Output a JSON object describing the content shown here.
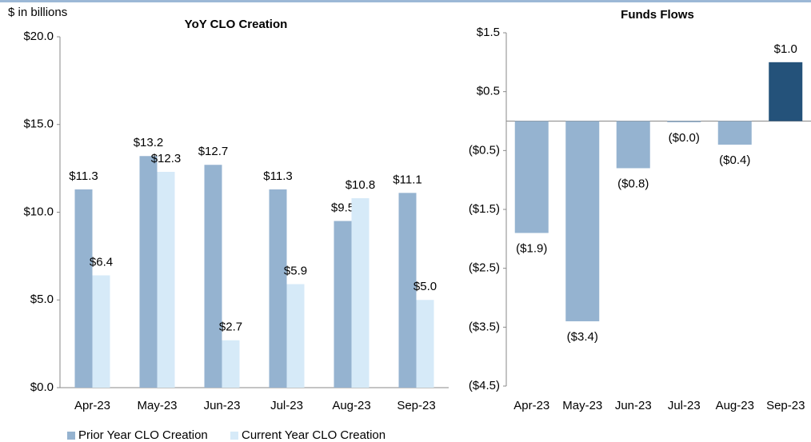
{
  "chart_data": [
    {
      "type": "bar",
      "title": "YoY CLO Creation",
      "ylabel": "$ in billions",
      "categories": [
        "Apr-23",
        "May-23",
        "Jun-23",
        "Jul-23",
        "Aug-23",
        "Sep-23"
      ],
      "series": [
        {
          "name": "Prior Year CLO Creation",
          "color": "#95b3d0",
          "values": [
            11.3,
            13.2,
            12.7,
            11.3,
            9.5,
            11.1
          ],
          "value_labels": [
            "$11.3",
            "$13.2",
            "$12.7",
            "$11.3",
            "$9.5",
            "$11.1"
          ]
        },
        {
          "name": "Current Year CLO Creation",
          "color": "#d6eaf8",
          "values": [
            6.4,
            12.3,
            2.7,
            5.9,
            10.8,
            5.0
          ],
          "value_labels": [
            "$6.4",
            "$12.3",
            "$2.7",
            "$5.9",
            "$10.8",
            "$5.0"
          ]
        }
      ],
      "ylim": [
        0,
        20
      ],
      "yticks": [
        {
          "value": 0,
          "label": "$0.0"
        },
        {
          "value": 5,
          "label": "$5.0"
        },
        {
          "value": 10,
          "label": "$10.0"
        },
        {
          "value": 15,
          "label": "$15.0"
        },
        {
          "value": 20,
          "label": "$20.0"
        }
      ],
      "legend": "bottom-left",
      "grid": false
    },
    {
      "type": "bar",
      "title": "Funds Flows",
      "categories": [
        "Apr-23",
        "May-23",
        "Jun-23",
        "Jul-23",
        "Aug-23",
        "Sep-23"
      ],
      "values": [
        -1.9,
        -3.4,
        -0.8,
        -0.02,
        -0.4,
        1.0
      ],
      "value_labels": [
        "($1.9)",
        "($3.4)",
        "($0.8)",
        "($0.0)",
        "($0.4)",
        "$1.0"
      ],
      "colors": [
        "#95b3d0",
        "#95b3d0",
        "#95b3d0",
        "#95b3d0",
        "#95b3d0",
        "#24527a"
      ],
      "ylim": [
        -4.5,
        1.5
      ],
      "yticks": [
        {
          "value": 1.5,
          "label": "$1.5"
        },
        {
          "value": 0.5,
          "label": "$0.5"
        },
        {
          "value": -0.5,
          "label": "($0.5)"
        },
        {
          "value": -1.5,
          "label": "($1.5)"
        },
        {
          "value": -2.5,
          "label": "($2.5)"
        },
        {
          "value": -3.5,
          "label": "($3.5)"
        },
        {
          "value": -4.5,
          "label": "($4.5)"
        }
      ],
      "grid": false
    }
  ]
}
